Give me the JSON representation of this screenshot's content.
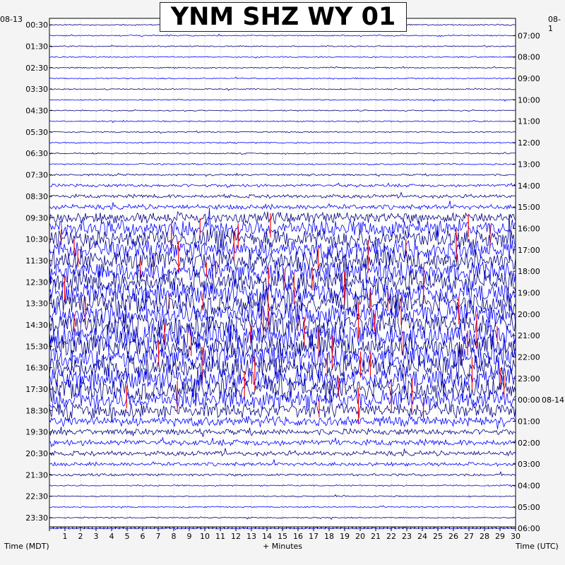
{
  "chart_data": {
    "type": "line",
    "title": "YNM SHZ WY 01",
    "start_date_left": "08-13",
    "start_date_right": "08-1",
    "next_date_label": "08-14",
    "xlabel": "+ Minutes",
    "ylabel_left": "Time (MDT)",
    "ylabel_right": "Time (UTC)",
    "xlim": [
      0,
      30
    ],
    "x_ticks": [
      "1",
      "2",
      "3",
      "4",
      "5",
      "6",
      "7",
      "8",
      "9",
      "10",
      "11",
      "12",
      "13",
      "14",
      "15",
      "16",
      "17",
      "18",
      "19",
      "20",
      "21",
      "22",
      "23",
      "24",
      "25",
      "26",
      "27",
      "28",
      "29",
      "30"
    ],
    "left_ticks": [
      "00:30",
      "01:30",
      "02:30",
      "03:30",
      "04:30",
      "05:30",
      "06:30",
      "07:30",
      "08:30",
      "09:30",
      "10:30",
      "11:30",
      "12:30",
      "13:30",
      "14:30",
      "15:30",
      "16:30",
      "17:30",
      "18:30",
      "19:30",
      "20:30",
      "21:30",
      "22:30",
      "23:30"
    ],
    "right_ticks": [
      "07:00",
      "08:00",
      "09:00",
      "10:00",
      "11:00",
      "12:00",
      "13:00",
      "14:00",
      "15:00",
      "16:00",
      "17:00",
      "18:00",
      "19:00",
      "20:00",
      "21:00",
      "22:00",
      "23:00",
      "00:00",
      "01:00",
      "02:00",
      "03:00",
      "04:00",
      "05:00",
      "06:00"
    ],
    "trace_count": 48,
    "trace_colors": [
      "#000080",
      "#0000ff"
    ],
    "clip_color": "#ff0000",
    "activity_per_trace": [
      1,
      1,
      1,
      1,
      1,
      1,
      1,
      1,
      1,
      1,
      1,
      1,
      1,
      1.2,
      1.5,
      2.5,
      3,
      4,
      9,
      14,
      16,
      16,
      17,
      17,
      18,
      18,
      19,
      19,
      20,
      20,
      19,
      19,
      19,
      18,
      18,
      16,
      12,
      8,
      5,
      5,
      4,
      3,
      2,
      1.2,
      1,
      1,
      1,
      1
    ],
    "grid": true
  }
}
